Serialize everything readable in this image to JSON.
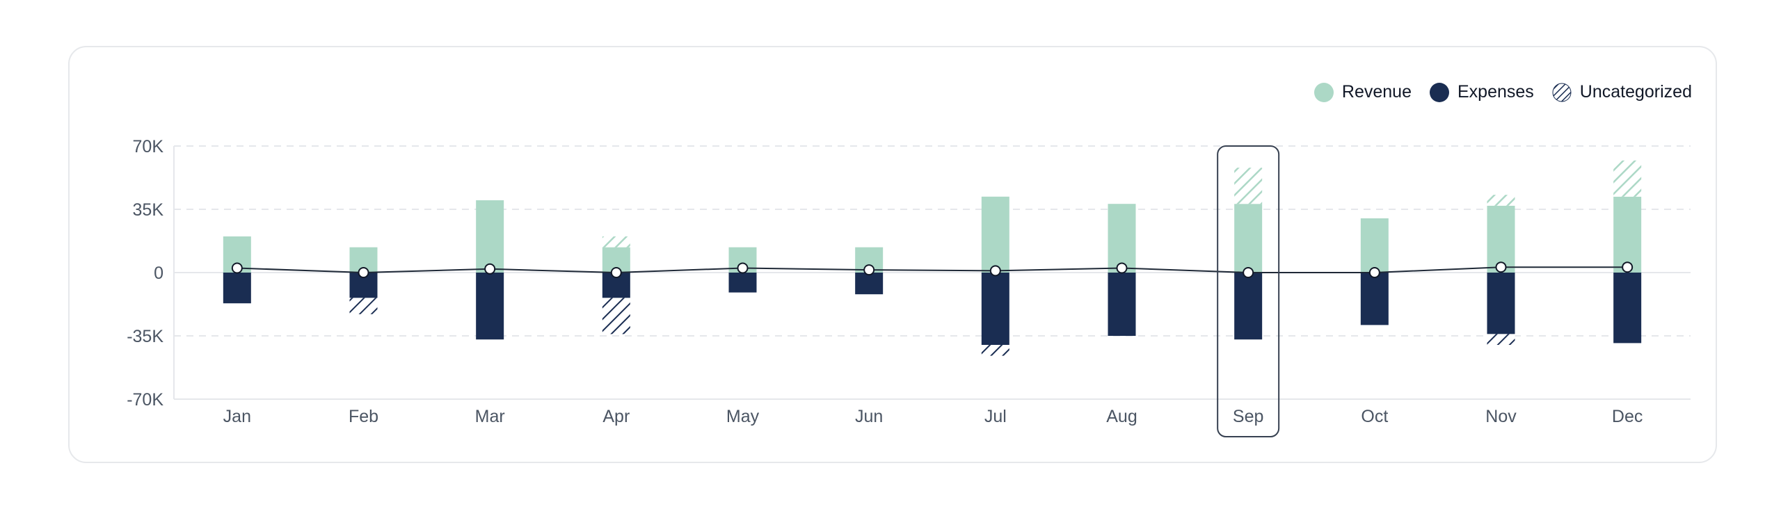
{
  "legend": {
    "revenue": "Revenue",
    "expenses": "Expenses",
    "uncategorized": "Uncategorized"
  },
  "colors": {
    "revenue": "#acd8c6",
    "expenses": "#1a2d52",
    "line": "#1f2937",
    "highlight_border": "#374151"
  },
  "chart_data": {
    "type": "bar",
    "categories": [
      "Jan",
      "Feb",
      "Mar",
      "Apr",
      "May",
      "Jun",
      "Jul",
      "Aug",
      "Sep",
      "Oct",
      "Nov",
      "Dec"
    ],
    "y_ticks": [
      "70K",
      "35K",
      "0",
      "-35K",
      "-70K"
    ],
    "ylim": [
      -70000,
      70000
    ],
    "grid": "dashed horizontal",
    "legend_position": "top-right",
    "highlighted_category": "Sep",
    "series": [
      {
        "name": "Revenue",
        "values": [
          20000,
          14000,
          40000,
          14000,
          14000,
          14000,
          42000,
          38000,
          38000,
          30000,
          37000,
          42000
        ]
      },
      {
        "name": "Uncategorized",
        "stack": "revenue",
        "values": [
          0,
          0,
          0,
          6000,
          0,
          0,
          0,
          0,
          20000,
          0,
          6000,
          20000
        ]
      },
      {
        "name": "Expenses",
        "values": [
          -17000,
          -14000,
          -37000,
          -14000,
          -11000,
          -12000,
          -40000,
          -35000,
          -37000,
          -29000,
          -34000,
          -39000
        ]
      },
      {
        "name": "Uncategorized",
        "stack": "expenses",
        "values": [
          0,
          -9000,
          0,
          -20000,
          0,
          0,
          -6000,
          0,
          0,
          0,
          -6000,
          0
        ]
      },
      {
        "name": "Net",
        "type": "line",
        "values": [
          2500,
          0,
          2000,
          0,
          2500,
          1500,
          1000,
          2500,
          0,
          0,
          3000,
          3000
        ]
      }
    ]
  }
}
